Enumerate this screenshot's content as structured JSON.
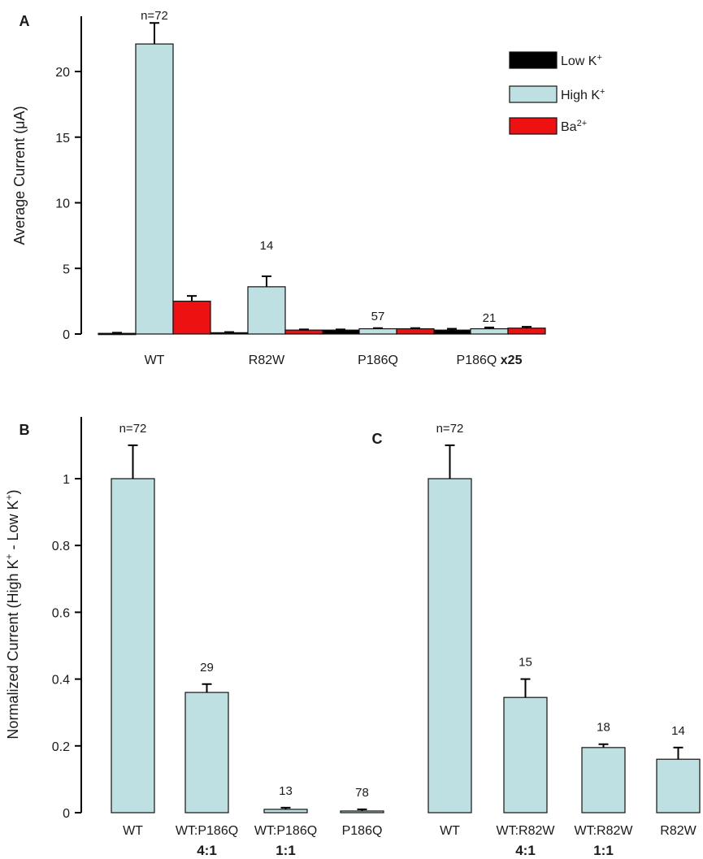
{
  "colors": {
    "low_k": "#000000",
    "high_k": "#bfe0e3",
    "ba": "#ee1111",
    "edge": "#111111"
  },
  "chart_data": [
    {
      "id": "A",
      "panel_label": "A",
      "type": "bar",
      "ylabel": "Average Current (μA)",
      "ylim": [
        0,
        24
      ],
      "yticks": [
        0,
        5,
        10,
        15,
        20
      ],
      "categories": [
        {
          "label": "WT",
          "bold": ""
        },
        {
          "label": "R82W",
          "bold": ""
        },
        {
          "label": "P186Q",
          "bold": ""
        },
        {
          "label": "P186Q",
          "bold": "x25"
        }
      ],
      "legend": [
        {
          "series": 0,
          "base": "Low K",
          "sup": "+"
        },
        {
          "series": 1,
          "base": "High K",
          "sup": "+"
        },
        {
          "series": 2,
          "base": "Ba",
          "sup": "2+"
        }
      ],
      "series": [
        {
          "name": "Low K+",
          "color_key": "low_k",
          "values": [
            0.05,
            0.1,
            0.3,
            0.3
          ],
          "errors": [
            0.05,
            0.05,
            0.05,
            0.1
          ]
        },
        {
          "name": "High K+",
          "color_key": "high_k",
          "values": [
            22.1,
            3.6,
            0.4,
            0.4
          ],
          "errors": [
            1.6,
            0.8,
            0.05,
            0.1
          ]
        },
        {
          "name": "Ba2+",
          "color_key": "ba",
          "values": [
            2.5,
            0.3,
            0.4,
            0.45
          ],
          "errors": [
            0.4,
            0.05,
            0.05,
            0.1
          ]
        }
      ],
      "n_labels": [
        "n=72",
        "14",
        "57",
        "21"
      ]
    },
    {
      "id": "B",
      "panel_label": "B",
      "type": "bar",
      "ylabel_base": "Normalized Current (High K",
      "ylabel_mid": " - Low K",
      "ylabel_end": ")",
      "ylabel_sup": "+",
      "ylim": [
        0,
        1.15
      ],
      "yticks": [
        "0",
        "0.2",
        "0.4",
        "0.6",
        "0.8",
        "1"
      ],
      "categories": [
        {
          "label": "WT",
          "bold": ""
        },
        {
          "label": "WT:P186Q",
          "bold": "4:1"
        },
        {
          "label": "WT:P186Q",
          "bold": "1:1"
        },
        {
          "label": "P186Q",
          "bold": ""
        }
      ],
      "values": [
        1.0,
        0.36,
        0.01,
        0.005
      ],
      "errors": [
        0.1,
        0.025,
        0.005,
        0.005
      ],
      "n_labels": [
        "n=72",
        "29",
        "13",
        "78"
      ]
    },
    {
      "id": "C",
      "panel_label": "C",
      "type": "bar",
      "ylim": [
        0,
        1.15
      ],
      "categories": [
        {
          "label": "WT",
          "bold": ""
        },
        {
          "label": "WT:R82W",
          "bold": "4:1"
        },
        {
          "label": "WT:R82W",
          "bold": "1:1"
        },
        {
          "label": "R82W",
          "bold": ""
        }
      ],
      "values": [
        1.0,
        0.345,
        0.195,
        0.16
      ],
      "errors": [
        0.1,
        0.055,
        0.01,
        0.035
      ],
      "n_labels": [
        "n=72",
        "15",
        "18",
        "14"
      ]
    }
  ]
}
